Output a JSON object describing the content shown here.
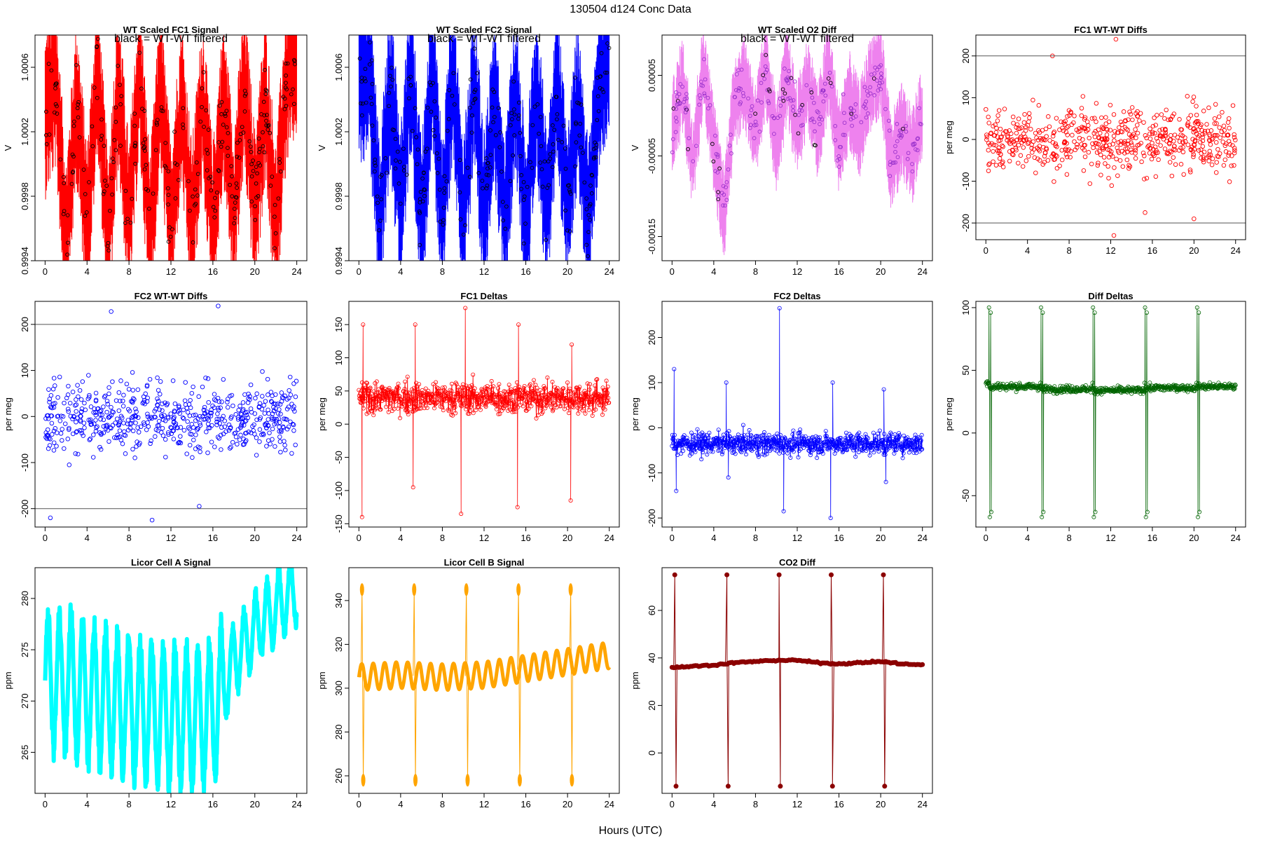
{
  "figure": {
    "title": "130504   d124   Conc Data",
    "xlabel": "Hours (UTC)"
  },
  "chart_data": [
    {
      "id": "p1",
      "type": "line",
      "title": "WT Scaled FC1 Signal",
      "annotation": "black = WT-WT filtered",
      "ylabel": "V",
      "xlim": [
        0,
        24
      ],
      "ylim": [
        0.9994,
        1.0008
      ],
      "xticks": [
        0,
        4,
        8,
        12,
        16,
        20,
        24
      ],
      "xtick_labels": [
        "0",
        "4",
        "8",
        "12",
        "16",
        "20",
        "24"
      ],
      "yticks": [
        0.9994,
        0.9998,
        1.0002,
        1.0006
      ],
      "ytick_labels": [
        "0.9994",
        "0.9998",
        "1.0002",
        "1.0006"
      ],
      "grid": false,
      "legend": "none",
      "color": "#ff0000",
      "overlay_color": "#000000",
      "series": [
        {
          "x": [
            0,
            1,
            2,
            3,
            4,
            5,
            6,
            7,
            8,
            9,
            10,
            11,
            12,
            13,
            14,
            15,
            16,
            17,
            18,
            19,
            20,
            21,
            22,
            23,
            24
          ],
          "y": [
            1.0003,
            1.0005,
            0.9995,
            1.0004,
            0.9996,
            1.0006,
            0.9995,
            1.0005,
            0.9996,
            1.0006,
            0.9995,
            1.0005,
            0.9996,
            1.0004,
            0.9996,
            1.0004,
            0.9996,
            1.0004,
            0.9997,
            1.0005,
            0.9997,
            1.0004,
            0.9996,
            1.0005,
            1.0007
          ]
        }
      ]
    },
    {
      "id": "p2",
      "type": "line",
      "title": "WT Scaled FC2 Signal",
      "annotation": "black = WT-WT filtered",
      "ylabel": "V",
      "xlim": [
        0,
        24
      ],
      "ylim": [
        0.9994,
        1.0008
      ],
      "xticks": [
        0,
        4,
        8,
        12,
        16,
        20,
        24
      ],
      "xtick_labels": [
        "0",
        "4",
        "8",
        "12",
        "16",
        "20",
        "24"
      ],
      "yticks": [
        0.9994,
        0.9998,
        1.0002,
        1.0006
      ],
      "ytick_labels": [
        "0.9994",
        "0.9998",
        "1.0002",
        "1.0006"
      ],
      "grid": false,
      "legend": "none",
      "color": "#0000ff",
      "overlay_color": "#000000",
      "series": [
        {
          "x": [
            0,
            1,
            2,
            3,
            4,
            5,
            6,
            7,
            8,
            9,
            10,
            11,
            12,
            13,
            14,
            15,
            16,
            17,
            18,
            19,
            20,
            21,
            22,
            23,
            24
          ],
          "y": [
            1.0005,
            1.0006,
            0.9996,
            1.0005,
            0.9997,
            1.0006,
            0.9996,
            1.0006,
            0.9996,
            1.0006,
            0.9996,
            1.0005,
            0.9997,
            1.0004,
            0.9996,
            1.0005,
            0.9996,
            1.0005,
            0.9997,
            1.0005,
            0.9997,
            1.0004,
            0.9996,
            1.0005,
            1.0007
          ]
        }
      ]
    },
    {
      "id": "p3",
      "type": "line",
      "title": "WT Scaled O2 Diff",
      "annotation": "black = WT-WT filtered",
      "ylabel": "V",
      "xlim": [
        0,
        24
      ],
      "ylim": [
        -0.00018,
        0.0001
      ],
      "xticks": [
        0,
        4,
        8,
        12,
        16,
        20,
        24
      ],
      "xtick_labels": [
        "0",
        "4",
        "8",
        "12",
        "16",
        "20",
        "24"
      ],
      "yticks": [
        -0.00015,
        -5e-05,
        5e-05
      ],
      "ytick_labels": [
        "-0.00015",
        "-0.00005",
        "0.00005"
      ],
      "grid": false,
      "legend": "none",
      "color": "#ee82ee",
      "point_color": "#9932cc",
      "overlay_color": "#000000",
      "series": [
        {
          "x": [
            0,
            1,
            2,
            3,
            4,
            5,
            6,
            7,
            8,
            9,
            10,
            11,
            12,
            13,
            14,
            15,
            16,
            17,
            18,
            19,
            20,
            21,
            22,
            23,
            24
          ],
          "y": [
            -2e-05,
            4e-05,
            -6e-05,
            6e-05,
            -4e-05,
            -0.00012,
            2e-05,
            4e-05,
            -2e-05,
            6e-05,
            -4e-05,
            5e-05,
            -2e-05,
            4e-05,
            -2e-05,
            6e-05,
            -4e-05,
            2e-05,
            -2e-05,
            4e-05,
            6e-05,
            -6e-05,
            -2e-05,
            -5e-05,
            0.0
          ]
        }
      ]
    },
    {
      "id": "p4",
      "type": "scatter",
      "title": "FC1 WT-WT Diffs",
      "ylabel": "per meg",
      "xlim": [
        0,
        24
      ],
      "ylim": [
        -240,
        250
      ],
      "xticks": [
        0,
        4,
        8,
        12,
        16,
        20,
        24
      ],
      "xtick_labels": [
        "0",
        "4",
        "8",
        "12",
        "16",
        "20",
        "24"
      ],
      "yticks": [
        -200,
        -100,
        0,
        100,
        200
      ],
      "ytick_labels": [
        "-200",
        "-100",
        "0",
        "100",
        "200"
      ],
      "hlines": [
        200,
        -200
      ],
      "grid": false,
      "legend": "none",
      "color": "#ff0000",
      "series": [
        {
          "n": 600,
          "x_range": [
            0,
            24
          ],
          "mean": 0,
          "spread": 70,
          "extremes": [
            [
              12.5,
              240
            ],
            [
              12.3,
              -230
            ],
            [
              6.4,
              200
            ],
            [
              20,
              -190
            ],
            [
              15.3,
              -175
            ]
          ]
        }
      ]
    },
    {
      "id": "p5",
      "type": "scatter",
      "title": "FC2 WT-WT Diffs",
      "ylabel": "per meg",
      "xlim": [
        0,
        24
      ],
      "ylim": [
        -240,
        250
      ],
      "xticks": [
        0,
        4,
        8,
        12,
        16,
        20,
        24
      ],
      "xtick_labels": [
        "0",
        "4",
        "8",
        "12",
        "16",
        "20",
        "24"
      ],
      "yticks": [
        -200,
        -100,
        0,
        100,
        200
      ],
      "ytick_labels": [
        "-200",
        "-100",
        "0",
        "100",
        "200"
      ],
      "hlines": [
        200,
        -200
      ],
      "grid": false,
      "legend": "none",
      "color": "#0000ff",
      "series": [
        {
          "n": 600,
          "x_range": [
            0,
            24
          ],
          "mean": 0,
          "spread": 70,
          "extremes": [
            [
              16.5,
              240
            ],
            [
              10.2,
              -225
            ],
            [
              0.5,
              -220
            ],
            [
              6.3,
              228
            ],
            [
              14.7,
              -195
            ]
          ]
        }
      ]
    },
    {
      "id": "p6",
      "type": "line",
      "title": "FC1 Deltas",
      "ylabel": "per meg",
      "xlim": [
        0,
        24
      ],
      "ylim": [
        -155,
        185
      ],
      "xticks": [
        0,
        4,
        8,
        12,
        16,
        20,
        24
      ],
      "xtick_labels": [
        "0",
        "4",
        "8",
        "12",
        "16",
        "20",
        "24"
      ],
      "yticks": [
        -150,
        -100,
        -50,
        0,
        50,
        100,
        150
      ],
      "ytick_labels": [
        "-150",
        "-100",
        "-50",
        "0",
        "50",
        "100",
        "150"
      ],
      "grid": false,
      "legend": "none",
      "color": "#ff0000",
      "series": [
        {
          "n": 700,
          "x_range": [
            0,
            24
          ],
          "mean": 40,
          "spread": 22,
          "spikes": [
            [
              0.3,
              -140
            ],
            [
              0.4,
              150
            ],
            [
              5.2,
              -95
            ],
            [
              5.4,
              150
            ],
            [
              9.8,
              -135
            ],
            [
              10.2,
              175
            ],
            [
              15.2,
              -125
            ],
            [
              15.3,
              150
            ],
            [
              20.3,
              -115
            ],
            [
              20.4,
              120
            ]
          ]
        }
      ]
    },
    {
      "id": "p7",
      "type": "line",
      "title": "FC2 Deltas",
      "ylabel": "per meg",
      "xlim": [
        0,
        24
      ],
      "ylim": [
        -220,
        280
      ],
      "xticks": [
        0,
        4,
        8,
        12,
        16,
        20,
        24
      ],
      "xtick_labels": [
        "0",
        "4",
        "8",
        "12",
        "16",
        "20",
        "24"
      ],
      "yticks": [
        -200,
        -100,
        0,
        100,
        200
      ],
      "ytick_labels": [
        "-200",
        "-100",
        "0",
        "100",
        "200"
      ],
      "grid": false,
      "legend": "none",
      "color": "#0000ff",
      "series": [
        {
          "n": 700,
          "x_range": [
            0,
            24
          ],
          "mean": -35,
          "spread": 22,
          "spikes": [
            [
              0.2,
              130
            ],
            [
              0.4,
              -140
            ],
            [
              5.2,
              100
            ],
            [
              5.4,
              -110
            ],
            [
              10.3,
              265
            ],
            [
              10.7,
              -185
            ],
            [
              15.2,
              -200
            ],
            [
              15.4,
              100
            ],
            [
              20.3,
              85
            ],
            [
              20.5,
              -120
            ]
          ]
        }
      ]
    },
    {
      "id": "p8",
      "type": "line",
      "title": "Diff Deltas",
      "ylabel": "per meg",
      "xlim": [
        0,
        24
      ],
      "ylim": [
        -75,
        105
      ],
      "xticks": [
        0,
        4,
        8,
        12,
        16,
        20,
        24
      ],
      "xtick_labels": [
        "0",
        "4",
        "8",
        "12",
        "16",
        "20",
        "24"
      ],
      "yticks": [
        -50,
        0,
        50,
        100
      ],
      "ytick_labels": [
        "-50",
        "0",
        "50",
        "100"
      ],
      "grid": false,
      "legend": "none",
      "color": "#006400",
      "series": [
        {
          "levels": [
            40,
            37,
            35,
            34,
            36,
            37
          ],
          "excursions": [
            0.3,
            5.3,
            10.3,
            15.3,
            20.3
          ],
          "high": 100,
          "low": -67
        }
      ]
    },
    {
      "id": "p9",
      "type": "line",
      "title": "Licor Cell A Signal",
      "ylabel": "ppm",
      "xlim": [
        0,
        24
      ],
      "ylim": [
        261,
        283
      ],
      "xticks": [
        0,
        4,
        8,
        12,
        16,
        20,
        24
      ],
      "xtick_labels": [
        "0",
        "4",
        "8",
        "12",
        "16",
        "20",
        "24"
      ],
      "yticks": [
        265,
        270,
        275,
        280
      ],
      "ytick_labels": [
        "265",
        "270",
        "275",
        "280"
      ],
      "grid": false,
      "legend": "none",
      "color": "#00ffff",
      "series": [
        {
          "x": [
            0,
            2,
            4,
            6,
            8,
            10,
            12,
            14,
            16,
            17,
            18,
            20,
            22,
            24
          ],
          "y": [
            272,
            272,
            271,
            270,
            269.5,
            269,
            268.5,
            268.5,
            269,
            271,
            274,
            277,
            279,
            281
          ],
          "amplitude": 8
        }
      ]
    },
    {
      "id": "p10",
      "type": "line",
      "title": "Licor Cell B Signal",
      "ylabel": "ppm",
      "xlim": [
        0,
        24
      ],
      "ylim": [
        252,
        355
      ],
      "xticks": [
        0,
        4,
        8,
        12,
        16,
        20,
        24
      ],
      "xtick_labels": [
        "0",
        "4",
        "8",
        "12",
        "16",
        "20",
        "24"
      ],
      "yticks": [
        260,
        280,
        300,
        320,
        340
      ],
      "ytick_labels": [
        "260",
        "280",
        "300",
        "320",
        "340"
      ],
      "grid": false,
      "legend": "none",
      "color": "#ffa500",
      "series": [
        {
          "x": [
            0,
            4,
            8,
            12,
            16,
            20,
            24
          ],
          "y": [
            305,
            306,
            305,
            306,
            309,
            312,
            315
          ],
          "amplitude": 6,
          "excursions": [
            0.3,
            5.3,
            10.3,
            15.3,
            20.3
          ],
          "high": 345,
          "low": 258
        }
      ]
    },
    {
      "id": "p11",
      "type": "line",
      "title": "CO2 Diff",
      "ylabel": "ppm",
      "xlim": [
        0,
        24
      ],
      "ylim": [
        -17,
        78
      ],
      "xticks": [
        0,
        4,
        8,
        12,
        16,
        20,
        24
      ],
      "xtick_labels": [
        "0",
        "4",
        "8",
        "12",
        "16",
        "20",
        "24"
      ],
      "yticks": [
        0,
        20,
        40,
        60
      ],
      "ytick_labels": [
        "0",
        "20",
        "40",
        "60"
      ],
      "grid": false,
      "legend": "none",
      "color": "#8b0000",
      "series": [
        {
          "x": [
            0,
            2,
            4,
            6,
            8,
            10,
            12,
            14,
            16,
            18,
            20,
            22,
            24
          ],
          "y": [
            36,
            36.5,
            37,
            38,
            38.5,
            39,
            39,
            38,
            37.5,
            38,
            38.5,
            37.5,
            37
          ],
          "excursions": [
            0.3,
            5.3,
            10.3,
            15.3,
            20.3
          ],
          "high": 75,
          "low": -14
        }
      ]
    }
  ]
}
